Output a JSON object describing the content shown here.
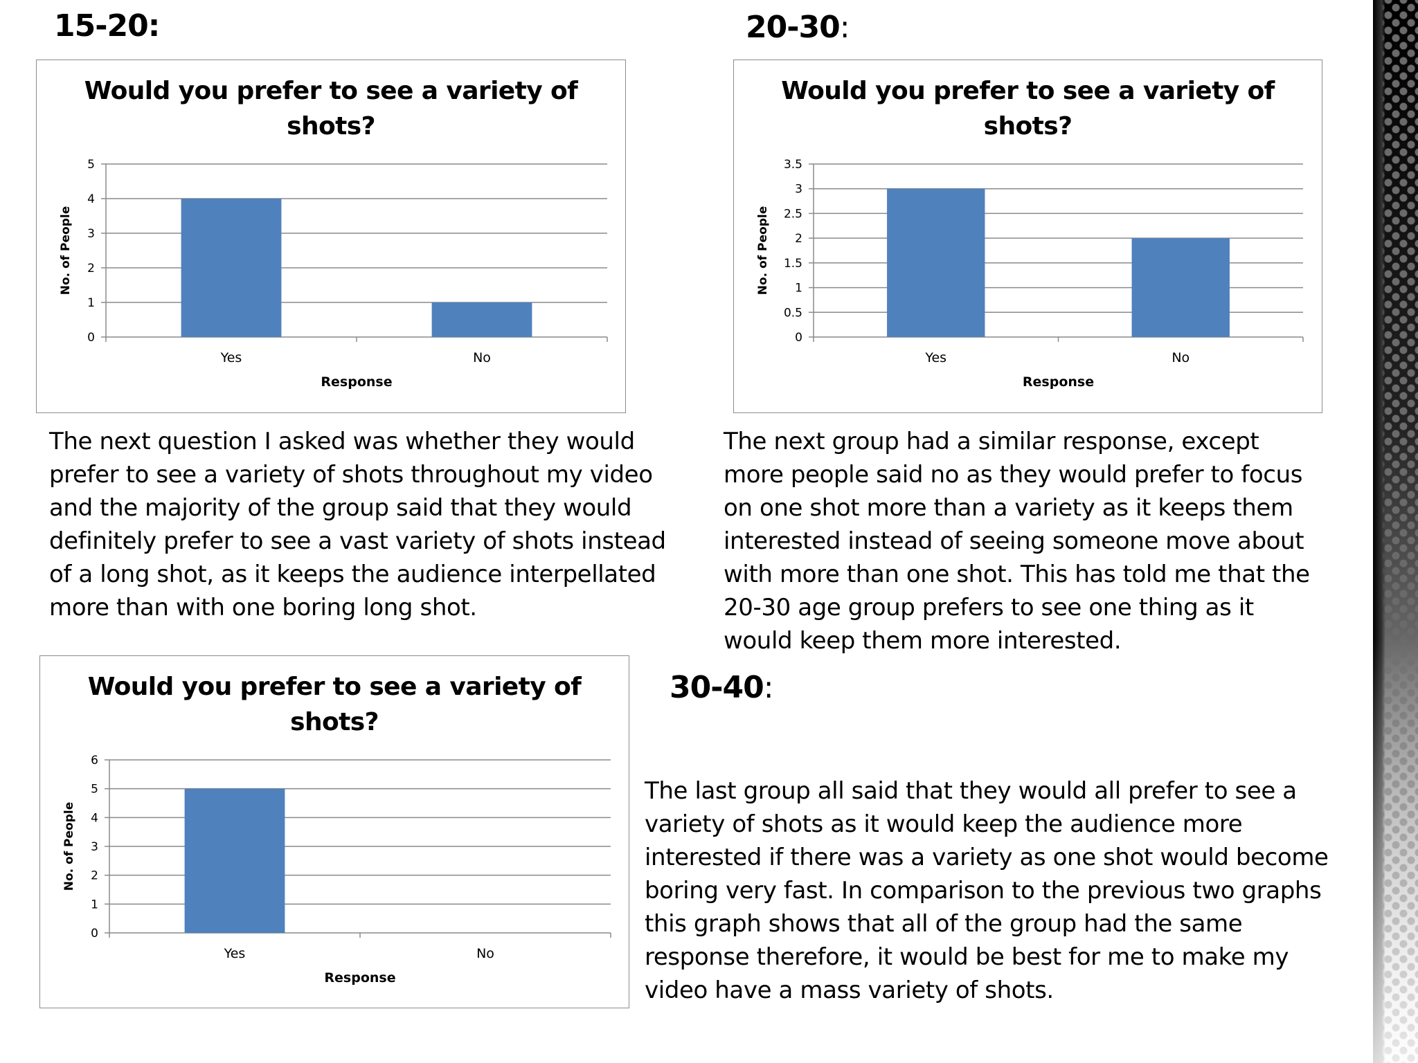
{
  "sections": [
    {
      "heading": "15-20:",
      "heading_colon": "",
      "paragraph_lines": [
        "The next question I asked was whether they would",
        "prefer to see a variety of shots throughout my video",
        "and the majority of the group said that they would",
        "definitely prefer to see a vast variety of shots instead",
        "of a long shot, as it keeps the audience interpellated",
        "more than with one boring long shot."
      ]
    },
    {
      "heading": "20-30",
      "heading_colon": ":",
      "paragraph_lines": [
        "The next group had a similar response, except",
        "more people said no as they would prefer to focus",
        "on one shot more than a variety as it keeps them",
        "interested instead of seeing someone move about",
        "with more than one shot. This has told me that the",
        "20-30 age group prefers to see one thing as it",
        "would keep them more interested."
      ]
    },
    {
      "heading": "30-40",
      "heading_colon": ":",
      "paragraph_lines": [
        "The last group all said that they would all prefer to see a",
        "variety of shots as it would keep the audience more",
        "interested if there was a variety as one shot would become",
        "boring very fast. In comparison to the previous two graphs",
        "this graph shows that all of the group had the same",
        "response therefore, it would be best for me to make my",
        "video have a mass variety of shots."
      ]
    }
  ],
  "chart_data": [
    {
      "type": "bar",
      "title_lines": [
        "Would you prefer to see a variety of",
        "shots?"
      ],
      "categories": [
        "Yes",
        "No"
      ],
      "values": [
        4,
        1
      ],
      "xlabel": "Response",
      "ylabel": "No. of People",
      "ylim": [
        0,
        5
      ],
      "yticks": [
        0,
        1,
        2,
        3,
        4,
        5
      ],
      "ytick_labels": [
        "0",
        "1",
        "2",
        "3",
        "4",
        "5"
      ],
      "bar_color": "#4f81bd",
      "grid": true,
      "legend": "none"
    },
    {
      "type": "bar",
      "title_lines": [
        "Would you prefer to see a variety of",
        "shots?"
      ],
      "categories": [
        "Yes",
        "No"
      ],
      "values": [
        3,
        2
      ],
      "xlabel": "Response",
      "ylabel": "No. of People",
      "ylim": [
        0,
        3.5
      ],
      "yticks": [
        0,
        0.5,
        1,
        1.5,
        2,
        2.5,
        3,
        3.5
      ],
      "ytick_labels": [
        "0",
        "0.5",
        "1",
        "1.5",
        "2",
        "2.5",
        "3",
        "3.5"
      ],
      "bar_color": "#4f81bd",
      "grid": true,
      "legend": "none"
    },
    {
      "type": "bar",
      "title_lines": [
        "Would you prefer to see a variety of",
        "shots?"
      ],
      "categories": [
        "Yes",
        "No"
      ],
      "values": [
        5,
        0
      ],
      "xlabel": "Response",
      "ylabel": "No. of People",
      "ylim": [
        0,
        6
      ],
      "yticks": [
        0,
        1,
        2,
        3,
        4,
        5,
        6
      ],
      "ytick_labels": [
        "0",
        "1",
        "2",
        "3",
        "4",
        "5",
        "6"
      ],
      "bar_color": "#4f81bd",
      "grid": true,
      "legend": "none"
    }
  ]
}
